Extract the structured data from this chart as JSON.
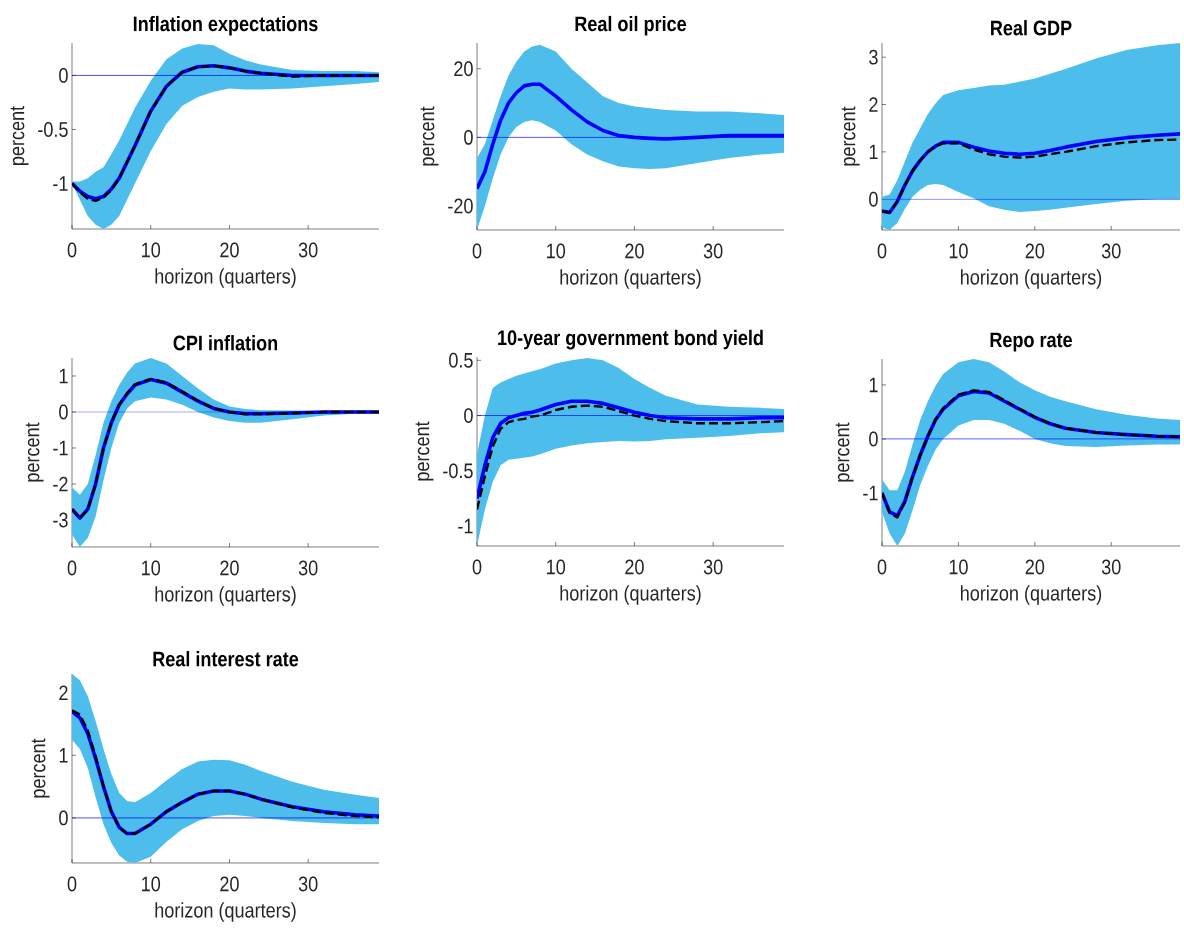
{
  "chart_data": [
    {
      "type": "line",
      "title": "Inflation expectations",
      "xlabel": "horizon (quarters)",
      "ylabel": "percent",
      "xlim": [
        0,
        39
      ],
      "xticks": [
        0,
        10,
        20,
        30
      ],
      "ylim": [
        -1.42,
        0.3
      ],
      "yticks": [
        -1,
        -0.5,
        0
      ],
      "x": [
        0,
        1,
        2,
        3,
        4,
        5,
        6,
        7,
        8,
        10,
        12,
        14,
        16,
        18,
        20,
        22,
        24,
        28,
        32,
        36,
        39
      ],
      "ref_lines": [
        {
          "axis": "y",
          "value": 0,
          "color": "#0000ff"
        }
      ],
      "series": [
        {
          "color": "#0000ff",
          "line_style": "solid",
          "values": [
            -1,
            -1.07,
            -1.12,
            -1.14,
            -1.12,
            -1.05,
            -0.95,
            -0.8,
            -0.65,
            -0.33,
            -0.1,
            0.03,
            0.08,
            0.09,
            0.07,
            0.04,
            0.02,
            0.0,
            0.0,
            0.0,
            0.0
          ],
          "upper": [
            -0.98,
            -0.98,
            -0.95,
            -0.89,
            -0.85,
            -0.73,
            -0.6,
            -0.45,
            -0.3,
            -0.05,
            0.15,
            0.25,
            0.29,
            0.28,
            0.2,
            0.14,
            0.1,
            0.05,
            0.04,
            0.04,
            0.03
          ],
          "lower": [
            -1.0,
            -1.15,
            -1.3,
            -1.38,
            -1.42,
            -1.38,
            -1.3,
            -1.15,
            -1.0,
            -0.7,
            -0.45,
            -0.28,
            -0.2,
            -0.15,
            -0.12,
            -0.13,
            -0.13,
            -0.12,
            -0.1,
            -0.08,
            -0.06
          ]
        },
        {
          "color": "#000000",
          "line_style": "dashed",
          "values": [
            -1,
            -1.08,
            -1.14,
            -1.16,
            -1.13,
            -1.06,
            -0.95,
            -0.8,
            -0.65,
            -0.33,
            -0.1,
            0.03,
            0.08,
            0.09,
            0.07,
            0.04,
            0.02,
            -0.01,
            0.0,
            0.0,
            0.0
          ]
        }
      ]
    },
    {
      "type": "line",
      "title": "Real oil price",
      "xlabel": "horizon (quarters)",
      "ylabel": "percent",
      "xlim": [
        0,
        39
      ],
      "xticks": [
        0,
        10,
        20,
        30
      ],
      "ylim": [
        -27,
        27.5
      ],
      "yticks": [
        -20,
        0,
        20
      ],
      "x": [
        0,
        1,
        2,
        3,
        4,
        5,
        6,
        7,
        8,
        10,
        12,
        14,
        16,
        18,
        20,
        22,
        24,
        28,
        32,
        36,
        39
      ],
      "ref_lines": [
        {
          "axis": "y",
          "value": 0,
          "color": "#0000ff"
        }
      ],
      "series": [
        {
          "color": "#0000ff",
          "line_style": "solid",
          "values": [
            -15,
            -10,
            -2,
            5,
            10,
            13,
            15,
            15.5,
            15.5,
            12,
            8,
            4.5,
            2,
            0.5,
            0,
            -0.3,
            -0.5,
            0,
            0.5,
            0.5,
            0.5
          ],
          "upper": [
            -6,
            -2,
            5,
            12,
            18,
            22,
            25,
            26.5,
            27,
            25,
            20,
            16,
            12,
            10,
            9,
            8.5,
            8,
            7.5,
            7.5,
            7,
            6.5
          ],
          "lower": [
            -27,
            -20,
            -12,
            -5,
            0,
            3,
            4.5,
            5,
            4.5,
            2,
            -2,
            -5,
            -7,
            -8.5,
            -9,
            -9.2,
            -9,
            -7.5,
            -6,
            -5,
            -4.5
          ]
        }
      ]
    },
    {
      "type": "line",
      "title": "Real GDP",
      "xlabel": "horizon (quarters)",
      "ylabel": "percent",
      "xlim": [
        0,
        39
      ],
      "xticks": [
        0,
        10,
        20,
        30
      ],
      "ylim": [
        -0.65,
        3.3
      ],
      "yticks": [
        0,
        1,
        2,
        3
      ],
      "x": [
        0,
        1,
        2,
        3,
        4,
        5,
        6,
        7,
        8,
        10,
        12,
        14,
        16,
        18,
        20,
        22,
        24,
        28,
        32,
        36,
        39
      ],
      "ref_lines": [
        {
          "axis": "y",
          "value": 0,
          "color": "#0000ff"
        }
      ],
      "series": [
        {
          "color": "#0000ff",
          "line_style": "solid",
          "values": [
            -0.25,
            -0.28,
            -0.05,
            0.3,
            0.6,
            0.82,
            1.0,
            1.12,
            1.2,
            1.2,
            1.1,
            1.02,
            0.97,
            0.95,
            0.97,
            1.03,
            1.1,
            1.22,
            1.3,
            1.35,
            1.38
          ],
          "upper": [
            0.05,
            0.1,
            0.4,
            0.8,
            1.2,
            1.5,
            1.8,
            2.02,
            2.2,
            2.3,
            2.35,
            2.4,
            2.42,
            2.48,
            2.55,
            2.65,
            2.75,
            2.97,
            3.15,
            3.25,
            3.3
          ],
          "lower": [
            -0.6,
            -0.65,
            -0.5,
            -0.2,
            0.05,
            0.2,
            0.3,
            0.32,
            0.3,
            0.15,
            0.02,
            -0.15,
            -0.22,
            -0.27,
            -0.25,
            -0.22,
            -0.18,
            -0.1,
            -0.03,
            0.0,
            0.0
          ]
        },
        {
          "color": "#000000",
          "line_style": "dashed",
          "values": [
            -0.25,
            -0.28,
            -0.05,
            0.3,
            0.6,
            0.82,
            1.0,
            1.12,
            1.18,
            1.18,
            1.05,
            0.95,
            0.9,
            0.88,
            0.9,
            0.95,
            1.0,
            1.12,
            1.2,
            1.25,
            1.26
          ]
        }
      ]
    },
    {
      "type": "line",
      "title": "CPI inflation",
      "xlabel": "horizon (quarters)",
      "ylabel": "percent",
      "xlim": [
        0,
        39
      ],
      "xticks": [
        0,
        10,
        20,
        30
      ],
      "ylim": [
        -3.75,
        1.5
      ],
      "yticks": [
        -3,
        -2,
        -1,
        0,
        1
      ],
      "x": [
        0,
        1,
        2,
        3,
        4,
        5,
        6,
        7,
        8,
        10,
        12,
        14,
        16,
        18,
        20,
        22,
        24,
        28,
        32,
        36,
        39
      ],
      "ref_lines": [
        {
          "axis": "y",
          "value": 0,
          "color": "#0000ff"
        }
      ],
      "series": [
        {
          "color": "#0000ff",
          "line_style": "solid",
          "values": [
            -2.7,
            -2.95,
            -2.7,
            -2.0,
            -1.0,
            -0.3,
            0.2,
            0.5,
            0.75,
            0.9,
            0.8,
            0.55,
            0.3,
            0.1,
            0.0,
            -0.05,
            -0.05,
            -0.03,
            0.0,
            0.0,
            0.0
          ],
          "upper": [
            -2.1,
            -2.3,
            -2.0,
            -1.2,
            -0.3,
            0.3,
            0.75,
            1.1,
            1.35,
            1.5,
            1.35,
            1.0,
            0.65,
            0.35,
            0.15,
            0.08,
            0.05,
            0.04,
            0.03,
            0.035,
            0.03
          ],
          "lower": [
            -3.4,
            -3.75,
            -3.5,
            -2.9,
            -1.9,
            -1.0,
            -0.3,
            0.1,
            0.3,
            0.4,
            0.35,
            0.2,
            0.0,
            -0.15,
            -0.25,
            -0.3,
            -0.3,
            -0.2,
            -0.1,
            -0.05,
            -0.05
          ]
        },
        {
          "color": "#000000",
          "line_style": "dashed",
          "values": [
            -2.7,
            -2.95,
            -2.72,
            -2.0,
            -1.0,
            -0.3,
            0.2,
            0.52,
            0.77,
            0.92,
            0.82,
            0.57,
            0.32,
            0.1,
            0.0,
            -0.06,
            -0.06,
            -0.04,
            0.0,
            0.0,
            0.0
          ]
        }
      ]
    },
    {
      "type": "line",
      "title": "10-year government bond yield",
      "xlabel": "horizon (quarters)",
      "ylabel": "percent",
      "xlim": [
        0,
        39
      ],
      "xticks": [
        0,
        10,
        20,
        30
      ],
      "ylim": [
        -1.18,
        0.53
      ],
      "yticks": [
        -1,
        -0.5,
        0,
        0.5
      ],
      "x": [
        0,
        1,
        2,
        3,
        4,
        5,
        6,
        7,
        8,
        10,
        12,
        14,
        16,
        18,
        20,
        22,
        24,
        28,
        32,
        36,
        39
      ],
      "ref_lines": [
        {
          "axis": "y",
          "value": 0,
          "color": "#0000ff"
        }
      ],
      "series": [
        {
          "color": "#0000ff",
          "line_style": "solid",
          "values": [
            -0.75,
            -0.45,
            -0.2,
            -0.07,
            -0.02,
            0.0,
            0.02,
            0.03,
            0.05,
            0.1,
            0.13,
            0.13,
            0.11,
            0.07,
            0.03,
            0.0,
            -0.02,
            -0.03,
            -0.03,
            -0.02,
            -0.02
          ],
          "upper": [
            -0.35,
            0.0,
            0.25,
            0.3,
            0.33,
            0.36,
            0.38,
            0.4,
            0.42,
            0.47,
            0.5,
            0.52,
            0.5,
            0.43,
            0.33,
            0.25,
            0.18,
            0.1,
            0.08,
            0.07,
            0.06
          ],
          "lower": [
            -1.18,
            -0.85,
            -0.6,
            -0.45,
            -0.4,
            -0.39,
            -0.38,
            -0.37,
            -0.35,
            -0.3,
            -0.27,
            -0.25,
            -0.24,
            -0.23,
            -0.235,
            -0.23,
            -0.215,
            -0.2,
            -0.185,
            -0.16,
            -0.15
          ]
        },
        {
          "color": "#000000",
          "line_style": "dashed",
          "values": [
            -0.85,
            -0.55,
            -0.28,
            -0.12,
            -0.06,
            -0.04,
            -0.03,
            -0.01,
            0.0,
            0.05,
            0.08,
            0.09,
            0.08,
            0.04,
            0.0,
            -0.03,
            -0.05,
            -0.07,
            -0.07,
            -0.06,
            -0.05
          ]
        }
      ]
    },
    {
      "type": "line",
      "title": "Repo rate",
      "xlabel": "horizon (quarters)",
      "ylabel": "percent",
      "xlim": [
        0,
        39
      ],
      "xticks": [
        0,
        10,
        20,
        30
      ],
      "ylim": [
        -1.98,
        1.48
      ],
      "yticks": [
        -1,
        0,
        1
      ],
      "x": [
        0,
        1,
        2,
        3,
        4,
        5,
        6,
        7,
        8,
        10,
        12,
        14,
        16,
        18,
        20,
        22,
        24,
        28,
        32,
        36,
        39
      ],
      "ref_lines": [
        {
          "axis": "y",
          "value": 0,
          "color": "#0000ff"
        }
      ],
      "series": [
        {
          "color": "#0000ff",
          "line_style": "solid",
          "values": [
            -1.0,
            -1.35,
            -1.42,
            -1.15,
            -0.7,
            -0.3,
            0.05,
            0.35,
            0.55,
            0.8,
            0.88,
            0.85,
            0.7,
            0.55,
            0.4,
            0.28,
            0.2,
            0.12,
            0.08,
            0.05,
            0.04
          ],
          "upper": [
            -0.75,
            -0.95,
            -0.95,
            -0.6,
            -0.1,
            0.35,
            0.7,
            0.98,
            1.2,
            1.42,
            1.48,
            1.42,
            1.25,
            1.05,
            0.9,
            0.78,
            0.7,
            0.55,
            0.45,
            0.38,
            0.35
          ],
          "lower": [
            -1.35,
            -1.75,
            -1.98,
            -1.75,
            -1.32,
            -0.85,
            -0.5,
            -0.2,
            0.0,
            0.25,
            0.35,
            0.35,
            0.28,
            0.15,
            0.0,
            -0.08,
            -0.13,
            -0.15,
            -0.12,
            -0.1,
            -0.1
          ]
        },
        {
          "color": "#000000",
          "line_style": "dashed",
          "values": [
            -1.0,
            -1.37,
            -1.45,
            -1.17,
            -0.7,
            -0.3,
            0.05,
            0.36,
            0.57,
            0.82,
            0.9,
            0.87,
            0.72,
            0.56,
            0.41,
            0.29,
            0.2,
            0.12,
            0.08,
            0.05,
            0.04
          ]
        }
      ]
    },
    {
      "type": "line",
      "title": "Real interest rate",
      "xlabel": "horizon (quarters)",
      "ylabel": "percent",
      "xlim": [
        0,
        39
      ],
      "xticks": [
        0,
        10,
        20,
        30
      ],
      "ylim": [
        -0.72,
        2.3
      ],
      "yticks": [
        0,
        1,
        2
      ],
      "x": [
        0,
        1,
        2,
        3,
        4,
        5,
        6,
        7,
        8,
        10,
        12,
        14,
        16,
        18,
        20,
        22,
        24,
        28,
        32,
        36,
        39
      ],
      "ref_lines": [
        {
          "axis": "y",
          "value": 0,
          "color": "#0000ff"
        }
      ],
      "series": [
        {
          "color": "#0000ff",
          "line_style": "solid",
          "values": [
            1.7,
            1.6,
            1.35,
            0.95,
            0.5,
            0.1,
            -0.15,
            -0.25,
            -0.25,
            -0.1,
            0.1,
            0.25,
            0.38,
            0.43,
            0.43,
            0.38,
            0.3,
            0.18,
            0.1,
            0.05,
            0.03
          ],
          "upper": [
            2.3,
            2.2,
            1.95,
            1.55,
            1.1,
            0.7,
            0.4,
            0.27,
            0.25,
            0.4,
            0.6,
            0.78,
            0.9,
            0.93,
            0.92,
            0.85,
            0.75,
            0.58,
            0.45,
            0.37,
            0.32
          ],
          "lower": [
            1.25,
            1.1,
            0.8,
            0.33,
            -0.1,
            -0.4,
            -0.6,
            -0.7,
            -0.72,
            -0.62,
            -0.38,
            -0.18,
            -0.05,
            0.03,
            0.05,
            0.03,
            0.0,
            -0.05,
            -0.08,
            -0.1,
            -0.1
          ]
        },
        {
          "color": "#000000",
          "line_style": "dashed",
          "values": [
            1.72,
            1.65,
            1.4,
            0.98,
            0.5,
            0.1,
            -0.15,
            -0.25,
            -0.25,
            -0.1,
            0.1,
            0.25,
            0.38,
            0.43,
            0.43,
            0.38,
            0.3,
            0.17,
            0.08,
            0.03,
            0.01
          ]
        }
      ]
    }
  ]
}
